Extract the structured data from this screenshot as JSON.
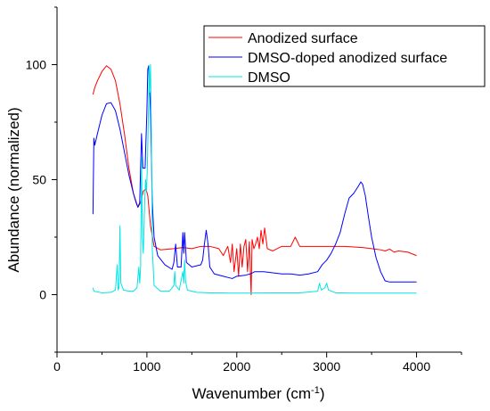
{
  "chart_data": {
    "type": "line",
    "xlabel": "Wavenumber (cm",
    "xlabel_sup": "-1",
    "xlabel_tail": ")",
    "ylabel": "Abundance (normalized)",
    "xlim": [
      0,
      4500
    ],
    "ylim": [
      -25,
      125
    ],
    "x_ticks": [
      0,
      1000,
      2000,
      3000,
      4000
    ],
    "x_tick_labels": [
      "0",
      "1000",
      "2000",
      "3000",
      "4000"
    ],
    "y_ticks": [
      0,
      50,
      100
    ],
    "y_tick_labels": [
      "0",
      "50",
      "100"
    ],
    "grid": false,
    "legend_position": "top-right",
    "series": [
      {
        "name": "Anodized surface",
        "color": "#ff0000",
        "points": [
          [
            400,
            87
          ],
          [
            420,
            90
          ],
          [
            450,
            93
          ],
          [
            500,
            97
          ],
          [
            550,
            99.5
          ],
          [
            600,
            98
          ],
          [
            650,
            93
          ],
          [
            700,
            83
          ],
          [
            750,
            70
          ],
          [
            800,
            55
          ],
          [
            850,
            44
          ],
          [
            900,
            38
          ],
          [
            930,
            40
          ],
          [
            960,
            45
          ],
          [
            990,
            46
          ],
          [
            1010,
            43
          ],
          [
            1040,
            30
          ],
          [
            1080,
            21
          ],
          [
            1150,
            19.5
          ],
          [
            1300,
            20
          ],
          [
            1400,
            20.5
          ],
          [
            1500,
            20
          ],
          [
            1600,
            21
          ],
          [
            1700,
            21
          ],
          [
            1800,
            20
          ],
          [
            1850,
            17
          ],
          [
            1900,
            21
          ],
          [
            1930,
            14
          ],
          [
            1950,
            22
          ],
          [
            1970,
            10
          ],
          [
            2000,
            20
          ],
          [
            2020,
            8
          ],
          [
            2040,
            22
          ],
          [
            2060,
            12
          ],
          [
            2080,
            21
          ],
          [
            2100,
            24
          ],
          [
            2120,
            10
          ],
          [
            2140,
            23
          ],
          [
            2160,
            0
          ],
          [
            2170,
            24
          ],
          [
            2190,
            20
          ],
          [
            2210,
            22
          ],
          [
            2230,
            25
          ],
          [
            2250,
            20
          ],
          [
            2270,
            28
          ],
          [
            2290,
            22
          ],
          [
            2310,
            29
          ],
          [
            2340,
            20
          ],
          [
            2400,
            19
          ],
          [
            2500,
            21
          ],
          [
            2600,
            21
          ],
          [
            2650,
            25
          ],
          [
            2700,
            21
          ],
          [
            2800,
            21
          ],
          [
            3000,
            21
          ],
          [
            3200,
            21
          ],
          [
            3400,
            20.5
          ],
          [
            3500,
            20
          ],
          [
            3600,
            19.5
          ],
          [
            3650,
            19
          ],
          [
            3700,
            19.8
          ],
          [
            3750,
            18.5
          ],
          [
            3800,
            19
          ],
          [
            3900,
            18.5
          ],
          [
            4000,
            17
          ]
        ]
      },
      {
        "name": "DMSO-doped anodized surface",
        "color": "#0000ff",
        "points": [
          [
            400,
            35
          ],
          [
            410,
            68
          ],
          [
            420,
            65
          ],
          [
            450,
            70
          ],
          [
            500,
            78
          ],
          [
            550,
            83
          ],
          [
            600,
            83.5
          ],
          [
            650,
            80
          ],
          [
            700,
            72
          ],
          [
            750,
            62
          ],
          [
            800,
            52
          ],
          [
            850,
            44
          ],
          [
            880,
            40
          ],
          [
            900,
            38
          ],
          [
            920,
            40
          ],
          [
            940,
            70
          ],
          [
            955,
            55
          ],
          [
            980,
            55
          ],
          [
            1000,
            80
          ],
          [
            1010,
            98
          ],
          [
            1020,
            99.5
          ],
          [
            1040,
            80
          ],
          [
            1060,
            40
          ],
          [
            1080,
            25
          ],
          [
            1120,
            17
          ],
          [
            1200,
            13
          ],
          [
            1280,
            11
          ],
          [
            1300,
            14
          ],
          [
            1320,
            22
          ],
          [
            1340,
            12
          ],
          [
            1380,
            12
          ],
          [
            1400,
            27
          ],
          [
            1410,
            18
          ],
          [
            1420,
            27
          ],
          [
            1440,
            14
          ],
          [
            1500,
            12
          ],
          [
            1600,
            13
          ],
          [
            1620,
            15
          ],
          [
            1640,
            22
          ],
          [
            1660,
            28
          ],
          [
            1680,
            22
          ],
          [
            1700,
            12
          ],
          [
            1750,
            9
          ],
          [
            1850,
            8
          ],
          [
            1950,
            7
          ],
          [
            2000,
            8
          ],
          [
            2100,
            8.5
          ],
          [
            2150,
            9
          ],
          [
            2200,
            10
          ],
          [
            2300,
            10
          ],
          [
            2400,
            9.5
          ],
          [
            2500,
            9
          ],
          [
            2600,
            9
          ],
          [
            2700,
            8.5
          ],
          [
            2800,
            9
          ],
          [
            2900,
            10
          ],
          [
            2950,
            13
          ],
          [
            3000,
            15
          ],
          [
            3050,
            18
          ],
          [
            3100,
            22
          ],
          [
            3150,
            27
          ],
          [
            3200,
            35
          ],
          [
            3250,
            42
          ],
          [
            3300,
            44
          ],
          [
            3350,
            47
          ],
          [
            3380,
            49
          ],
          [
            3400,
            48
          ],
          [
            3430,
            43
          ],
          [
            3460,
            35
          ],
          [
            3500,
            25
          ],
          [
            3550,
            16
          ],
          [
            3600,
            10
          ],
          [
            3650,
            6
          ],
          [
            3700,
            5.5
          ],
          [
            3800,
            5.5
          ],
          [
            3900,
            5.5
          ],
          [
            4000,
            5.5
          ]
        ]
      },
      {
        "name": "DMSO",
        "color": "#00e5e5",
        "points": [
          [
            400,
            3
          ],
          [
            410,
            1.5
          ],
          [
            500,
            0.8
          ],
          [
            600,
            1
          ],
          [
            650,
            2
          ],
          [
            670,
            13
          ],
          [
            680,
            2
          ],
          [
            690,
            3
          ],
          [
            700,
            30
          ],
          [
            710,
            5
          ],
          [
            740,
            2
          ],
          [
            800,
            1.5
          ],
          [
            850,
            1.5
          ],
          [
            890,
            3
          ],
          [
            910,
            12
          ],
          [
            920,
            5
          ],
          [
            930,
            12
          ],
          [
            940,
            60
          ],
          [
            950,
            25
          ],
          [
            960,
            18
          ],
          [
            975,
            40
          ],
          [
            985,
            50
          ],
          [
            995,
            45
          ],
          [
            1005,
            55
          ],
          [
            1015,
            75
          ],
          [
            1025,
            99.5
          ],
          [
            1030,
            88
          ],
          [
            1040,
            100
          ],
          [
            1050,
            70
          ],
          [
            1060,
            20
          ],
          [
            1080,
            4
          ],
          [
            1150,
            1.5
          ],
          [
            1250,
            1.5
          ],
          [
            1300,
            4
          ],
          [
            1310,
            10
          ],
          [
            1320,
            4
          ],
          [
            1360,
            2
          ],
          [
            1400,
            10
          ],
          [
            1410,
            5
          ],
          [
            1420,
            15
          ],
          [
            1430,
            6
          ],
          [
            1450,
            2
          ],
          [
            1550,
            1
          ],
          [
            1700,
            0.8
          ],
          [
            1900,
            0.7
          ],
          [
            2100,
            0.7
          ],
          [
            2400,
            0.8
          ],
          [
            2700,
            0.8
          ],
          [
            2900,
            1.5
          ],
          [
            2920,
            5
          ],
          [
            2940,
            2
          ],
          [
            2980,
            3
          ],
          [
            3000,
            5
          ],
          [
            3020,
            2
          ],
          [
            3100,
            0.8
          ],
          [
            3300,
            0.7
          ],
          [
            3600,
            0.7
          ],
          [
            4000,
            0.7
          ]
        ]
      }
    ]
  }
}
